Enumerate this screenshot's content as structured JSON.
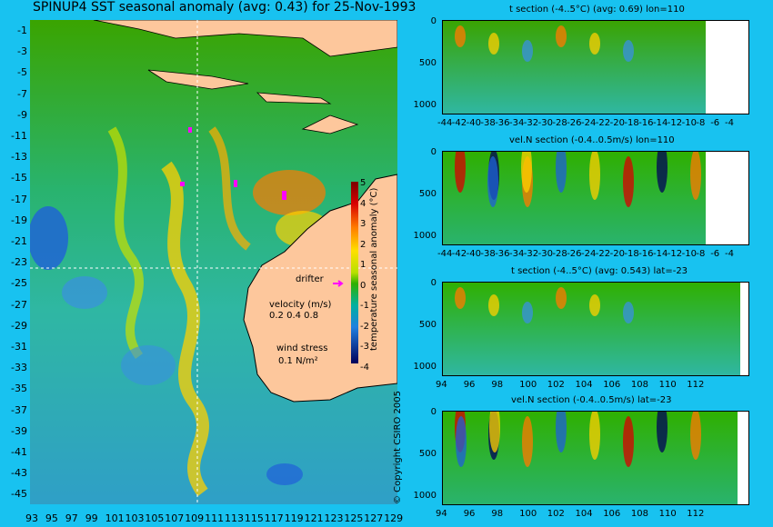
{
  "title": "SPINUP4 SST seasonal anomaly (avg: 0.43) for 25-Nov-1993",
  "map": {
    "y_ticks": [
      "-1",
      "-3",
      "-5",
      "-7",
      "-9",
      "-11",
      "-13",
      "-15",
      "-17",
      "-19",
      "-21",
      "-23",
      "-25",
      "-27",
      "-29",
      "-31",
      "-33",
      "-35",
      "-37",
      "-39",
      "-41",
      "-43",
      "-45"
    ],
    "x_ticks": [
      "93",
      "95",
      "97",
      "99",
      "101",
      "103",
      "105",
      "107",
      "109",
      "111",
      "113",
      "115",
      "117",
      "119",
      "121",
      "123",
      "125",
      "127",
      "129"
    ],
    "colorbar": {
      "title": "temperature seasonal anomaly (°C)",
      "ticks": [
        "5",
        "4",
        "3",
        "2",
        "1",
        "0",
        "-1",
        "-2",
        "-3",
        "-4"
      ]
    },
    "legend": {
      "drifter": "drifter",
      "velocity_title": "velocity (m/s)",
      "velocity_scale": "0.2 0.4 0.8",
      "wind_title": "wind stress",
      "wind_scale": "0.1 N/m²"
    }
  },
  "panels": [
    {
      "title": "t section (-4..5°C) (avg: 0.69) lon=110",
      "y_ticks": [
        "0",
        "500",
        "1000"
      ],
      "x_ticks": [
        "-44",
        "-42",
        "-40",
        "-38",
        "-36",
        "-34",
        "-32",
        "-30",
        "-28",
        "-26",
        "-24",
        "-22",
        "-20",
        "-18",
        "-16",
        "-14",
        "-12",
        "-10",
        "-8",
        "-6",
        "-4"
      ]
    },
    {
      "title": "vel.N section (-0.4..0.5m/s) lon=110",
      "y_ticks": [
        "0",
        "500",
        "1000"
      ],
      "x_ticks": [
        "-44",
        "-42",
        "-40",
        "-38",
        "-36",
        "-34",
        "-32",
        "-30",
        "-28",
        "-26",
        "-24",
        "-22",
        "-20",
        "-18",
        "-16",
        "-14",
        "-12",
        "-10",
        "-8",
        "-6",
        "-4"
      ]
    },
    {
      "title": "t section (-4..5°C) (avg: 0.543) lat=-23",
      "y_ticks": [
        "0",
        "500",
        "1000"
      ],
      "x_ticks": [
        "94",
        "96",
        "98",
        "100",
        "102",
        "104",
        "106",
        "108",
        "110",
        "112"
      ]
    },
    {
      "title": "vel.N section (-0.4..0.5m/s) lat=-23",
      "y_ticks": [
        "0",
        "500",
        "1000"
      ],
      "x_ticks": [
        "94",
        "96",
        "98",
        "100",
        "102",
        "104",
        "106",
        "108",
        "110",
        "112"
      ]
    }
  ],
  "copyright": "© Copyright CSIRO 2005"
}
